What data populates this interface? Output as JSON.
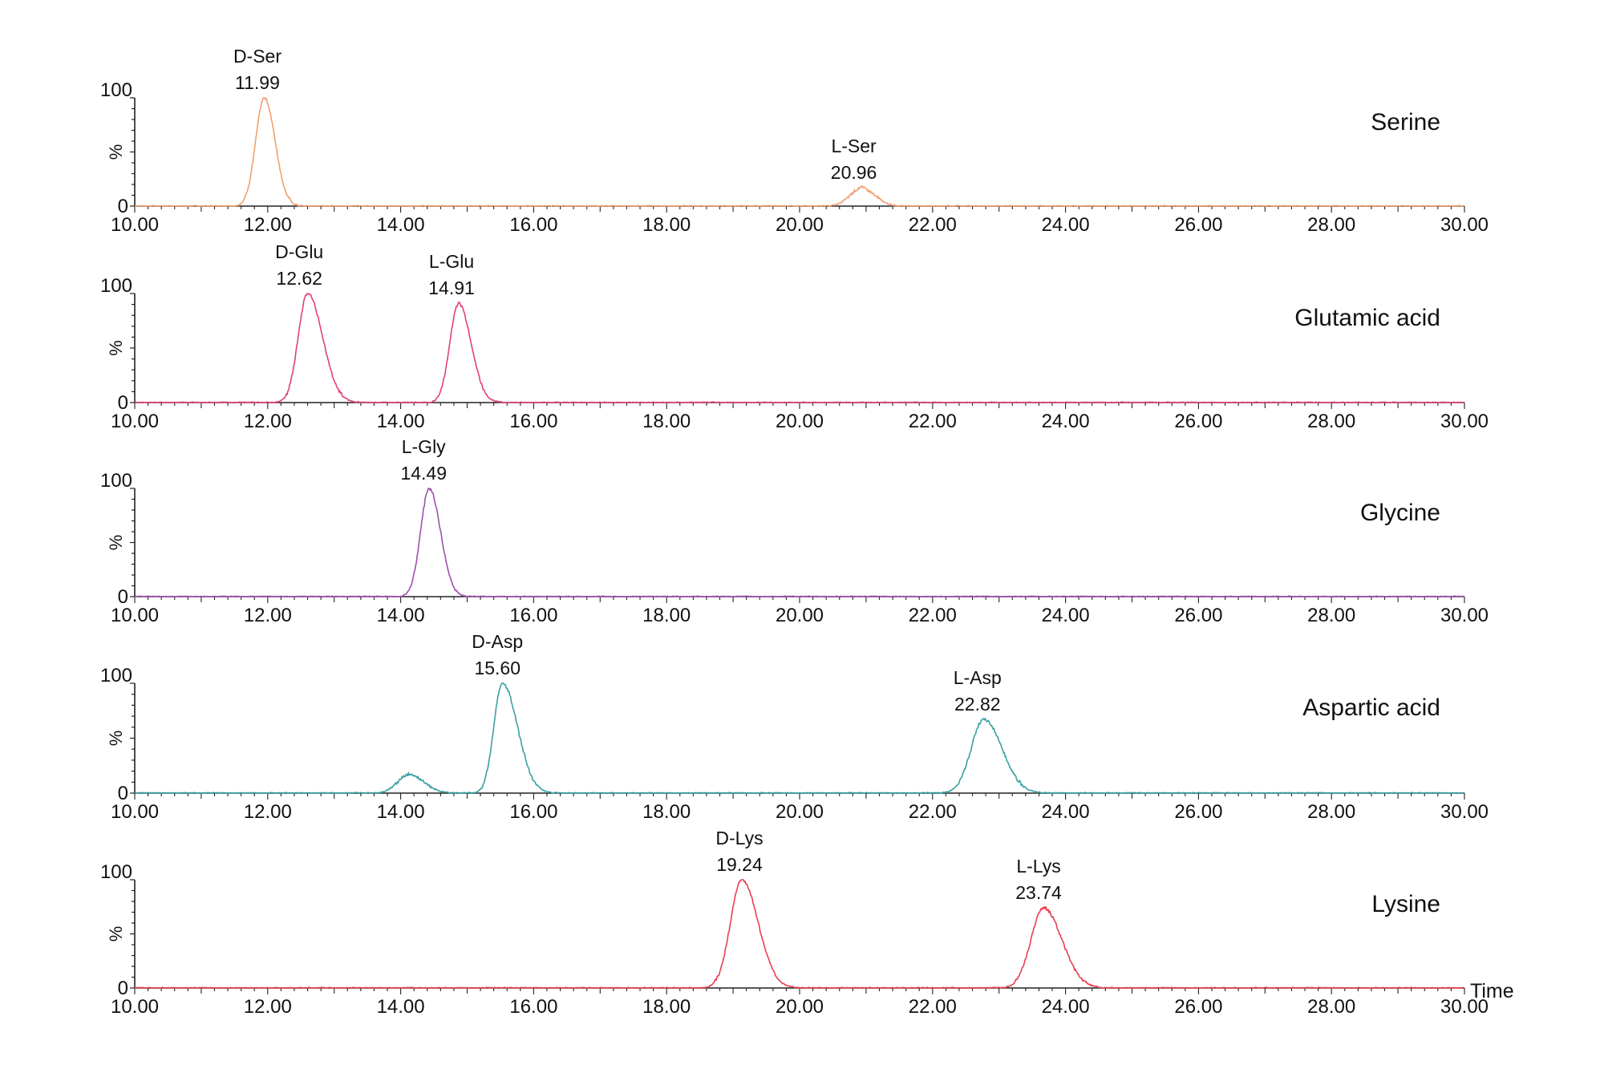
{
  "figure": {
    "x_label": "Time",
    "y_axis_symbol": "%",
    "y_tick_top": "100",
    "y_tick_bottom": "0"
  },
  "chart_data": {
    "type": "line",
    "title": "",
    "xlabel": "Time",
    "ylabel": "%",
    "xlim": [
      10.0,
      30.0
    ],
    "ylim": [
      0,
      100
    ],
    "x_ticks": [
      "10.00",
      "12.00",
      "14.00",
      "16.00",
      "18.00",
      "20.00",
      "22.00",
      "24.00",
      "26.00",
      "28.00",
      "30.00"
    ],
    "grid": false,
    "legend": "none (panel labels at right)",
    "panels": [
      {
        "name": "Serine",
        "color": "#f0a070",
        "peaks": [
          {
            "label": "D-Ser",
            "rt_label": "11.99",
            "center": 11.95,
            "height": 100,
            "sigma": 0.13,
            "tail": 0.08
          },
          {
            "label": "L-Ser",
            "rt_label": "20.96",
            "center": 20.93,
            "height": 17,
            "sigma": 0.17,
            "tail": 0.05
          }
        ]
      },
      {
        "name": "Glutamic acid",
        "color": "#e0407a",
        "peaks": [
          {
            "label": "D-Glu",
            "rt_label": "12.62",
            "center": 12.6,
            "height": 100,
            "sigma": 0.14,
            "tail": 0.2
          },
          {
            "label": "L-Glu",
            "rt_label": "14.91",
            "center": 14.87,
            "height": 91,
            "sigma": 0.13,
            "tail": 0.15
          }
        ]
      },
      {
        "name": "Glycine",
        "color": "#a050b0",
        "peaks": [
          {
            "label": "L-Gly",
            "rt_label": "14.49",
            "center": 14.43,
            "height": 100,
            "sigma": 0.13,
            "tail": 0.1
          }
        ]
      },
      {
        "name": "Aspartic acid",
        "color": "#3aa0a0",
        "peaks": [
          {
            "label": "",
            "rt_label": "",
            "center": 14.12,
            "height": 17,
            "sigma": 0.17,
            "tail": 0.1
          },
          {
            "label": "D-Asp",
            "rt_label": "15.60",
            "center": 15.53,
            "height": 100,
            "sigma": 0.13,
            "tail": 0.25
          },
          {
            "label": "L-Asp",
            "rt_label": "22.82",
            "center": 22.77,
            "height": 67,
            "sigma": 0.19,
            "tail": 0.15
          }
        ]
      },
      {
        "name": "Lysine",
        "color": "#e84050",
        "peaks": [
          {
            "label": "D-Lys",
            "rt_label": "19.24",
            "center": 19.13,
            "height": 100,
            "sigma": 0.17,
            "tail": 0.15
          },
          {
            "label": "L-Lys",
            "rt_label": "23.74",
            "center": 23.67,
            "height": 74,
            "sigma": 0.19,
            "tail": 0.15
          }
        ]
      }
    ]
  }
}
